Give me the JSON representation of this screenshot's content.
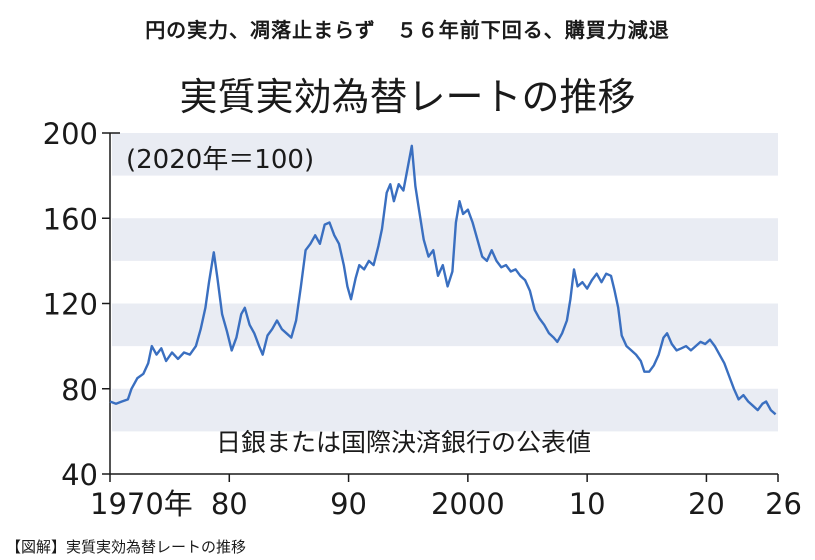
{
  "header": {
    "headline": "円の実力、凋落止まらず　５６年前下回る、購買力減退",
    "title": "実質実効為替レートの推移"
  },
  "caption": "【図解】実質実効為替レートの推移",
  "colors": {
    "line": "#3a6fc0",
    "band": "#e9ecf3",
    "axis": "#1a1a1a"
  },
  "chart_data": {
    "type": "line",
    "title": "実質実効為替レートの推移",
    "unit_note": "(2020年＝100)",
    "source_note": "日銀または国際決済銀行の公表値",
    "xlim": [
      1970,
      2026
    ],
    "ylim": [
      40,
      200
    ],
    "y_ticks": [
      {
        "value": 40,
        "label": "40"
      },
      {
        "value": 80,
        "label": "80"
      },
      {
        "value": 120,
        "label": "120"
      },
      {
        "value": 160,
        "label": "160"
      },
      {
        "value": 200,
        "label": "200"
      }
    ],
    "x_ticks": [
      {
        "value": 1970,
        "label": "1970年"
      },
      {
        "value": 1980,
        "label": "80"
      },
      {
        "value": 1990,
        "label": "90"
      },
      {
        "value": 2000,
        "label": "2000"
      },
      {
        "value": 2010,
        "label": "10"
      },
      {
        "value": 2020,
        "label": "20"
      },
      {
        "value": 2026,
        "label": "26"
      }
    ],
    "bands": [
      [
        60,
        80
      ],
      [
        100,
        120
      ],
      [
        140,
        160
      ],
      [
        180,
        200
      ]
    ],
    "series": [
      {
        "name": "",
        "points": [
          [
            1970.0,
            74
          ],
          [
            1970.5,
            73
          ],
          [
            1971.0,
            74
          ],
          [
            1971.5,
            75
          ],
          [
            1971.8,
            80
          ],
          [
            1972.3,
            85
          ],
          [
            1972.8,
            87
          ],
          [
            1973.2,
            92
          ],
          [
            1973.5,
            100
          ],
          [
            1973.9,
            96
          ],
          [
            1974.3,
            99
          ],
          [
            1974.7,
            93
          ],
          [
            1975.2,
            97
          ],
          [
            1975.7,
            94
          ],
          [
            1976.2,
            97
          ],
          [
            1976.7,
            96
          ],
          [
            1977.2,
            100
          ],
          [
            1977.6,
            108
          ],
          [
            1978.0,
            118
          ],
          [
            1978.3,
            130
          ],
          [
            1978.7,
            144
          ],
          [
            1979.0,
            132
          ],
          [
            1979.4,
            115
          ],
          [
            1979.8,
            107
          ],
          [
            1980.2,
            98
          ],
          [
            1980.6,
            104
          ],
          [
            1981.0,
            115
          ],
          [
            1981.3,
            118
          ],
          [
            1981.7,
            110
          ],
          [
            1982.1,
            106
          ],
          [
            1982.5,
            100
          ],
          [
            1982.8,
            96
          ],
          [
            1983.2,
            105
          ],
          [
            1983.6,
            108
          ],
          [
            1984.0,
            112
          ],
          [
            1984.4,
            108
          ],
          [
            1984.8,
            106
          ],
          [
            1985.2,
            104
          ],
          [
            1985.6,
            112
          ],
          [
            1986.0,
            128
          ],
          [
            1986.4,
            145
          ],
          [
            1986.8,
            148
          ],
          [
            1987.2,
            152
          ],
          [
            1987.6,
            148
          ],
          [
            1988.0,
            157
          ],
          [
            1988.4,
            158
          ],
          [
            1988.8,
            152
          ],
          [
            1989.2,
            148
          ],
          [
            1989.6,
            138
          ],
          [
            1989.9,
            128
          ],
          [
            1990.2,
            122
          ],
          [
            1990.6,
            132
          ],
          [
            1990.9,
            138
          ],
          [
            1991.3,
            136
          ],
          [
            1991.7,
            140
          ],
          [
            1992.1,
            138
          ],
          [
            1992.5,
            147
          ],
          [
            1992.8,
            155
          ],
          [
            1993.2,
            172
          ],
          [
            1993.5,
            176
          ],
          [
            1993.8,
            168
          ],
          [
            1994.2,
            176
          ],
          [
            1994.6,
            173
          ],
          [
            1995.0,
            185
          ],
          [
            1995.3,
            194
          ],
          [
            1995.6,
            175
          ],
          [
            1995.9,
            164
          ],
          [
            1996.3,
            150
          ],
          [
            1996.7,
            142
          ],
          [
            1997.1,
            145
          ],
          [
            1997.5,
            133
          ],
          [
            1997.9,
            138
          ],
          [
            1998.3,
            128
          ],
          [
            1998.7,
            135
          ],
          [
            1999.0,
            158
          ],
          [
            1999.3,
            168
          ],
          [
            1999.6,
            162
          ],
          [
            2000.0,
            164
          ],
          [
            2000.4,
            158
          ],
          [
            2000.8,
            150
          ],
          [
            2001.2,
            142
          ],
          [
            2001.6,
            140
          ],
          [
            2002.0,
            145
          ],
          [
            2002.4,
            140
          ],
          [
            2002.8,
            137
          ],
          [
            2003.2,
            138
          ],
          [
            2003.6,
            135
          ],
          [
            2004.0,
            136
          ],
          [
            2004.4,
            133
          ],
          [
            2004.8,
            131
          ],
          [
            2005.2,
            126
          ],
          [
            2005.6,
            117
          ],
          [
            2006.0,
            113
          ],
          [
            2006.4,
            110
          ],
          [
            2006.8,
            106
          ],
          [
            2007.2,
            104
          ],
          [
            2007.5,
            102
          ],
          [
            2007.9,
            106
          ],
          [
            2008.3,
            112
          ],
          [
            2008.6,
            122
          ],
          [
            2008.9,
            136
          ],
          [
            2009.2,
            128
          ],
          [
            2009.6,
            130
          ],
          [
            2010.0,
            127
          ],
          [
            2010.4,
            131
          ],
          [
            2010.8,
            134
          ],
          [
            2011.2,
            130
          ],
          [
            2011.6,
            134
          ],
          [
            2012.0,
            133
          ],
          [
            2012.3,
            126
          ],
          [
            2012.6,
            118
          ],
          [
            2012.9,
            105
          ],
          [
            2013.3,
            100
          ],
          [
            2013.7,
            98
          ],
          [
            2014.1,
            96
          ],
          [
            2014.5,
            93
          ],
          [
            2014.8,
            88
          ],
          [
            2015.2,
            88
          ],
          [
            2015.6,
            91
          ],
          [
            2016.0,
            96
          ],
          [
            2016.4,
            104
          ],
          [
            2016.7,
            106
          ],
          [
            2017.1,
            101
          ],
          [
            2017.5,
            98
          ],
          [
            2017.9,
            99
          ],
          [
            2018.3,
            100
          ],
          [
            2018.7,
            98
          ],
          [
            2019.1,
            100
          ],
          [
            2019.5,
            102
          ],
          [
            2019.9,
            101
          ],
          [
            2020.3,
            103
          ],
          [
            2020.7,
            100
          ],
          [
            2021.1,
            96
          ],
          [
            2021.5,
            92
          ],
          [
            2021.9,
            86
          ],
          [
            2022.3,
            80
          ],
          [
            2022.7,
            75
          ],
          [
            2023.1,
            77
          ],
          [
            2023.5,
            74
          ],
          [
            2023.9,
            72
          ],
          [
            2024.3,
            70
          ],
          [
            2024.7,
            73
          ],
          [
            2025.0,
            74
          ],
          [
            2025.4,
            70
          ],
          [
            2025.8,
            68
          ]
        ]
      }
    ]
  }
}
